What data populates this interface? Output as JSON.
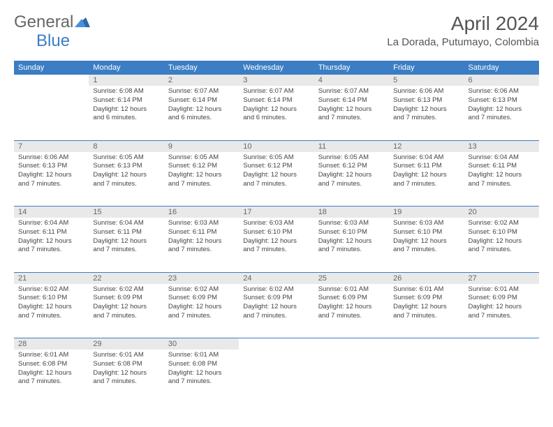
{
  "logo": {
    "text1": "General",
    "text2": "Blue"
  },
  "title": "April 2024",
  "location": "La Dorada, Putumayo, Colombia",
  "headers": [
    "Sunday",
    "Monday",
    "Tuesday",
    "Wednesday",
    "Thursday",
    "Friday",
    "Saturday"
  ],
  "colors": {
    "header_bg": "#3b7ec4",
    "header_fg": "#ffffff",
    "daynum_bg": "#e9e9e9",
    "daynum_fg": "#666666",
    "border": "#3b7ec4",
    "text": "#444444"
  },
  "weeks": [
    [
      {
        "n": "",
        "lines": []
      },
      {
        "n": "1",
        "lines": [
          "Sunrise: 6:08 AM",
          "Sunset: 6:14 PM",
          "Daylight: 12 hours",
          "and 6 minutes."
        ]
      },
      {
        "n": "2",
        "lines": [
          "Sunrise: 6:07 AM",
          "Sunset: 6:14 PM",
          "Daylight: 12 hours",
          "and 6 minutes."
        ]
      },
      {
        "n": "3",
        "lines": [
          "Sunrise: 6:07 AM",
          "Sunset: 6:14 PM",
          "Daylight: 12 hours",
          "and 6 minutes."
        ]
      },
      {
        "n": "4",
        "lines": [
          "Sunrise: 6:07 AM",
          "Sunset: 6:14 PM",
          "Daylight: 12 hours",
          "and 7 minutes."
        ]
      },
      {
        "n": "5",
        "lines": [
          "Sunrise: 6:06 AM",
          "Sunset: 6:13 PM",
          "Daylight: 12 hours",
          "and 7 minutes."
        ]
      },
      {
        "n": "6",
        "lines": [
          "Sunrise: 6:06 AM",
          "Sunset: 6:13 PM",
          "Daylight: 12 hours",
          "and 7 minutes."
        ]
      }
    ],
    [
      {
        "n": "7",
        "lines": [
          "Sunrise: 6:06 AM",
          "Sunset: 6:13 PM",
          "Daylight: 12 hours",
          "and 7 minutes."
        ]
      },
      {
        "n": "8",
        "lines": [
          "Sunrise: 6:05 AM",
          "Sunset: 6:13 PM",
          "Daylight: 12 hours",
          "and 7 minutes."
        ]
      },
      {
        "n": "9",
        "lines": [
          "Sunrise: 6:05 AM",
          "Sunset: 6:12 PM",
          "Daylight: 12 hours",
          "and 7 minutes."
        ]
      },
      {
        "n": "10",
        "lines": [
          "Sunrise: 6:05 AM",
          "Sunset: 6:12 PM",
          "Daylight: 12 hours",
          "and 7 minutes."
        ]
      },
      {
        "n": "11",
        "lines": [
          "Sunrise: 6:05 AM",
          "Sunset: 6:12 PM",
          "Daylight: 12 hours",
          "and 7 minutes."
        ]
      },
      {
        "n": "12",
        "lines": [
          "Sunrise: 6:04 AM",
          "Sunset: 6:11 PM",
          "Daylight: 12 hours",
          "and 7 minutes."
        ]
      },
      {
        "n": "13",
        "lines": [
          "Sunrise: 6:04 AM",
          "Sunset: 6:11 PM",
          "Daylight: 12 hours",
          "and 7 minutes."
        ]
      }
    ],
    [
      {
        "n": "14",
        "lines": [
          "Sunrise: 6:04 AM",
          "Sunset: 6:11 PM",
          "Daylight: 12 hours",
          "and 7 minutes."
        ]
      },
      {
        "n": "15",
        "lines": [
          "Sunrise: 6:04 AM",
          "Sunset: 6:11 PM",
          "Daylight: 12 hours",
          "and 7 minutes."
        ]
      },
      {
        "n": "16",
        "lines": [
          "Sunrise: 6:03 AM",
          "Sunset: 6:11 PM",
          "Daylight: 12 hours",
          "and 7 minutes."
        ]
      },
      {
        "n": "17",
        "lines": [
          "Sunrise: 6:03 AM",
          "Sunset: 6:10 PM",
          "Daylight: 12 hours",
          "and 7 minutes."
        ]
      },
      {
        "n": "18",
        "lines": [
          "Sunrise: 6:03 AM",
          "Sunset: 6:10 PM",
          "Daylight: 12 hours",
          "and 7 minutes."
        ]
      },
      {
        "n": "19",
        "lines": [
          "Sunrise: 6:03 AM",
          "Sunset: 6:10 PM",
          "Daylight: 12 hours",
          "and 7 minutes."
        ]
      },
      {
        "n": "20",
        "lines": [
          "Sunrise: 6:02 AM",
          "Sunset: 6:10 PM",
          "Daylight: 12 hours",
          "and 7 minutes."
        ]
      }
    ],
    [
      {
        "n": "21",
        "lines": [
          "Sunrise: 6:02 AM",
          "Sunset: 6:10 PM",
          "Daylight: 12 hours",
          "and 7 minutes."
        ]
      },
      {
        "n": "22",
        "lines": [
          "Sunrise: 6:02 AM",
          "Sunset: 6:09 PM",
          "Daylight: 12 hours",
          "and 7 minutes."
        ]
      },
      {
        "n": "23",
        "lines": [
          "Sunrise: 6:02 AM",
          "Sunset: 6:09 PM",
          "Daylight: 12 hours",
          "and 7 minutes."
        ]
      },
      {
        "n": "24",
        "lines": [
          "Sunrise: 6:02 AM",
          "Sunset: 6:09 PM",
          "Daylight: 12 hours",
          "and 7 minutes."
        ]
      },
      {
        "n": "25",
        "lines": [
          "Sunrise: 6:01 AM",
          "Sunset: 6:09 PM",
          "Daylight: 12 hours",
          "and 7 minutes."
        ]
      },
      {
        "n": "26",
        "lines": [
          "Sunrise: 6:01 AM",
          "Sunset: 6:09 PM",
          "Daylight: 12 hours",
          "and 7 minutes."
        ]
      },
      {
        "n": "27",
        "lines": [
          "Sunrise: 6:01 AM",
          "Sunset: 6:09 PM",
          "Daylight: 12 hours",
          "and 7 minutes."
        ]
      }
    ],
    [
      {
        "n": "28",
        "lines": [
          "Sunrise: 6:01 AM",
          "Sunset: 6:08 PM",
          "Daylight: 12 hours",
          "and 7 minutes."
        ]
      },
      {
        "n": "29",
        "lines": [
          "Sunrise: 6:01 AM",
          "Sunset: 6:08 PM",
          "Daylight: 12 hours",
          "and 7 minutes."
        ]
      },
      {
        "n": "30",
        "lines": [
          "Sunrise: 6:01 AM",
          "Sunset: 6:08 PM",
          "Daylight: 12 hours",
          "and 7 minutes."
        ]
      },
      {
        "n": "",
        "lines": []
      },
      {
        "n": "",
        "lines": []
      },
      {
        "n": "",
        "lines": []
      },
      {
        "n": "",
        "lines": []
      }
    ]
  ]
}
